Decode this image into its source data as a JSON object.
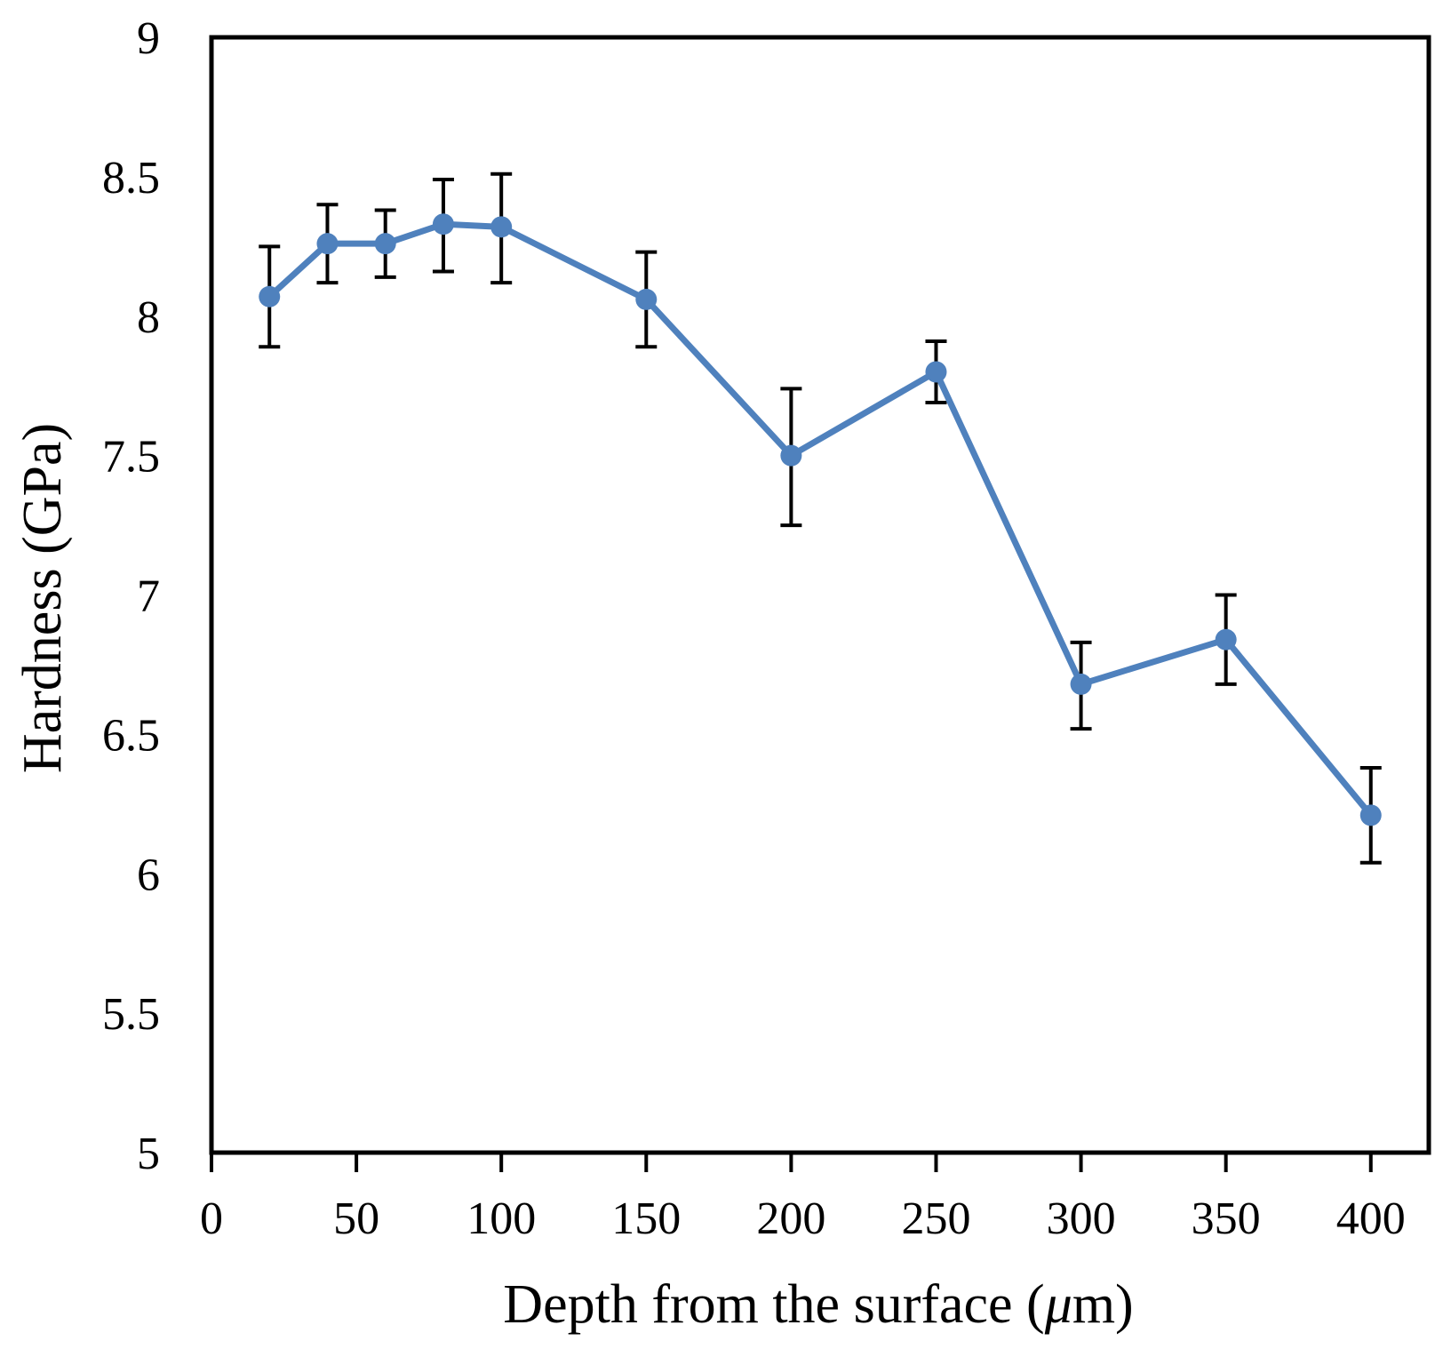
{
  "chart_data": {
    "type": "line",
    "title": "",
    "xlabel": "Depth from the surface (μm)",
    "xlabel_main": "Depth from the surface (",
    "xlabel_unit": "μ",
    "xlabel_end": "m)",
    "ylabel": "Hardness (GPa)",
    "xlim": [
      0,
      420
    ],
    "ylim": [
      5,
      9
    ],
    "x_ticks": [
      0,
      50,
      100,
      150,
      200,
      250,
      300,
      350,
      400
    ],
    "x_tick_labels": [
      "0",
      "50",
      "100",
      "150",
      "200",
      "250",
      "300",
      "350",
      "400"
    ],
    "y_ticks": [
      5,
      5.5,
      6,
      6.5,
      7,
      7.5,
      8,
      8.5,
      9
    ],
    "y_tick_labels": [
      "5",
      "5.5",
      "6",
      "6.5",
      "7",
      "7.5",
      "8",
      "8.5",
      "9"
    ],
    "grid": false,
    "legend": "none",
    "series": [
      {
        "name": "Hardness",
        "color": "#4F81BD",
        "x": [
          20,
          40,
          60,
          80,
          100,
          150,
          200,
          250,
          300,
          350,
          400
        ],
        "y": [
          8.07,
          8.26,
          8.26,
          8.33,
          8.32,
          8.06,
          7.5,
          7.8,
          6.68,
          6.84,
          6.21
        ],
        "error_low": [
          0.18,
          0.14,
          0.12,
          0.17,
          0.2,
          0.17,
          0.25,
          0.11,
          0.16,
          0.16,
          0.17
        ],
        "error_high": [
          0.18,
          0.14,
          0.12,
          0.16,
          0.19,
          0.17,
          0.24,
          0.11,
          0.15,
          0.16,
          0.17
        ]
      }
    ]
  }
}
